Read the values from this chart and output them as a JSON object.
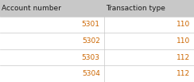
{
  "columns": [
    "Account number",
    "Transaction type"
  ],
  "col_split": 0.535,
  "rows": [
    [
      5301,
      110
    ],
    [
      5302,
      110
    ],
    [
      5303,
      112
    ],
    [
      5304,
      112
    ]
  ],
  "header_bg": "#c8c8c8",
  "row_bg_all": "#ffffff",
  "row_bg_stripe": "#f5f5f5",
  "header_text_color": "#1a1a1a",
  "data_text_color": "#cc6600",
  "grid_color": "#c8c8c8",
  "font_size": 6.5,
  "header_font_size": 6.5,
  "fig_width": 2.44,
  "fig_height": 1.03,
  "dpi": 100
}
